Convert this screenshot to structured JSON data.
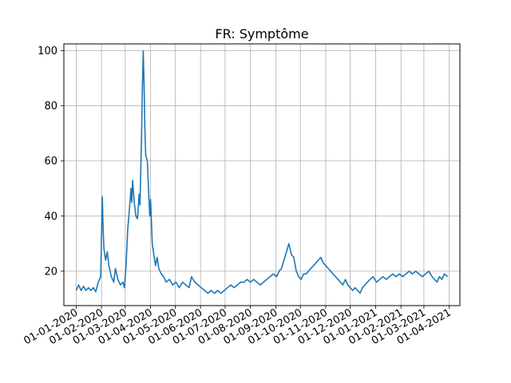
{
  "chart_data": {
    "type": "line",
    "title": "FR: Symptôme",
    "xlabel": "",
    "ylabel": "",
    "grid": true,
    "legend": "none",
    "color": "#1f77b4",
    "xlim": [
      "2019-12-17",
      "2021-04-14"
    ],
    "ylim": [
      7.5,
      102.5
    ],
    "x_ticks": [
      "01-01-2020",
      "01-02-2020",
      "01-03-2020",
      "01-04-2020",
      "01-05-2020",
      "01-06-2020",
      "01-07-2020",
      "01-08-2020",
      "01-09-2020",
      "01-10-2020",
      "01-11-2020",
      "01-12-2020",
      "01-01-2021",
      "01-02-2021",
      "01-03-2021",
      "01-04-2021"
    ],
    "y_ticks": [
      20,
      40,
      60,
      80,
      100
    ],
    "series": [
      {
        "name": "",
        "points": [
          [
            "2020-01-01",
            13
          ],
          [
            "2020-01-04",
            15
          ],
          [
            "2020-01-07",
            13
          ],
          [
            "2020-01-10",
            14.5
          ],
          [
            "2020-01-13",
            13
          ],
          [
            "2020-01-16",
            14
          ],
          [
            "2020-01-19",
            13
          ],
          [
            "2020-01-22",
            14
          ],
          [
            "2020-01-25",
            12.5
          ],
          [
            "2020-01-28",
            16
          ],
          [
            "2020-01-31",
            18
          ],
          [
            "2020-02-02",
            47
          ],
          [
            "2020-02-03",
            35
          ],
          [
            "2020-02-04",
            28
          ],
          [
            "2020-02-06",
            24
          ],
          [
            "2020-02-08",
            27
          ],
          [
            "2020-02-10",
            22
          ],
          [
            "2020-02-13",
            18
          ],
          [
            "2020-02-16",
            16
          ],
          [
            "2020-02-18",
            21
          ],
          [
            "2020-02-21",
            17
          ],
          [
            "2020-02-24",
            15
          ],
          [
            "2020-02-27",
            16
          ],
          [
            "2020-02-29",
            14
          ],
          [
            "2020-03-02",
            22
          ],
          [
            "2020-03-04",
            35
          ],
          [
            "2020-03-06",
            42
          ],
          [
            "2020-03-08",
            50
          ],
          [
            "2020-03-09",
            45
          ],
          [
            "2020-03-10",
            53
          ],
          [
            "2020-03-12",
            45
          ],
          [
            "2020-03-14",
            40
          ],
          [
            "2020-03-16",
            39
          ],
          [
            "2020-03-18",
            48
          ],
          [
            "2020-03-19",
            44
          ],
          [
            "2020-03-21",
            70
          ],
          [
            "2020-03-22",
            87
          ],
          [
            "2020-03-23",
            100
          ],
          [
            "2020-03-24",
            88
          ],
          [
            "2020-03-25",
            72
          ],
          [
            "2020-03-26",
            62
          ],
          [
            "2020-03-28",
            60
          ],
          [
            "2020-03-30",
            46
          ],
          [
            "2020-03-31",
            40
          ],
          [
            "2020-04-01",
            46
          ],
          [
            "2020-04-03",
            30
          ],
          [
            "2020-04-05",
            26
          ],
          [
            "2020-04-07",
            22
          ],
          [
            "2020-04-09",
            25
          ],
          [
            "2020-04-11",
            21
          ],
          [
            "2020-04-14",
            19
          ],
          [
            "2020-04-17",
            18
          ],
          [
            "2020-04-20",
            16
          ],
          [
            "2020-04-24",
            17
          ],
          [
            "2020-04-28",
            15
          ],
          [
            "2020-05-02",
            16
          ],
          [
            "2020-05-06",
            14
          ],
          [
            "2020-05-10",
            16
          ],
          [
            "2020-05-14",
            15
          ],
          [
            "2020-05-18",
            14
          ],
          [
            "2020-05-21",
            18
          ],
          [
            "2020-05-25",
            16
          ],
          [
            "2020-05-29",
            15
          ],
          [
            "2020-06-02",
            14
          ],
          [
            "2020-06-06",
            13
          ],
          [
            "2020-06-10",
            12
          ],
          [
            "2020-06-14",
            13
          ],
          [
            "2020-06-18",
            12
          ],
          [
            "2020-06-22",
            13
          ],
          [
            "2020-06-26",
            12
          ],
          [
            "2020-06-30",
            13
          ],
          [
            "2020-07-04",
            14
          ],
          [
            "2020-07-08",
            15
          ],
          [
            "2020-07-12",
            14
          ],
          [
            "2020-07-16",
            15
          ],
          [
            "2020-07-20",
            16
          ],
          [
            "2020-07-24",
            16
          ],
          [
            "2020-07-28",
            17
          ],
          [
            "2020-08-01",
            16
          ],
          [
            "2020-08-05",
            17
          ],
          [
            "2020-08-09",
            16
          ],
          [
            "2020-08-13",
            15
          ],
          [
            "2020-08-17",
            16
          ],
          [
            "2020-08-21",
            17
          ],
          [
            "2020-08-25",
            18
          ],
          [
            "2020-08-29",
            19
          ],
          [
            "2020-09-02",
            18
          ],
          [
            "2020-09-05",
            20
          ],
          [
            "2020-09-08",
            21
          ],
          [
            "2020-09-11",
            24
          ],
          [
            "2020-09-14",
            27
          ],
          [
            "2020-09-17",
            30
          ],
          [
            "2020-09-20",
            26
          ],
          [
            "2020-09-23",
            25
          ],
          [
            "2020-09-26",
            20
          ],
          [
            "2020-09-29",
            18
          ],
          [
            "2020-10-02",
            17
          ],
          [
            "2020-10-05",
            19
          ],
          [
            "2020-10-08",
            19
          ],
          [
            "2020-10-11",
            20
          ],
          [
            "2020-10-14",
            21
          ],
          [
            "2020-10-17",
            22
          ],
          [
            "2020-10-20",
            23
          ],
          [
            "2020-10-23",
            24
          ],
          [
            "2020-10-26",
            25
          ],
          [
            "2020-10-29",
            23
          ],
          [
            "2020-11-01",
            22
          ],
          [
            "2020-11-04",
            21
          ],
          [
            "2020-11-07",
            20
          ],
          [
            "2020-11-10",
            19
          ],
          [
            "2020-11-13",
            18
          ],
          [
            "2020-11-16",
            17
          ],
          [
            "2020-11-19",
            16
          ],
          [
            "2020-11-22",
            15
          ],
          [
            "2020-11-25",
            17
          ],
          [
            "2020-11-28",
            15
          ],
          [
            "2020-12-01",
            14
          ],
          [
            "2020-12-04",
            13
          ],
          [
            "2020-12-07",
            14
          ],
          [
            "2020-12-10",
            13
          ],
          [
            "2020-12-13",
            12
          ],
          [
            "2020-12-16",
            14
          ],
          [
            "2020-12-19",
            15
          ],
          [
            "2020-12-22",
            16
          ],
          [
            "2020-12-25",
            17
          ],
          [
            "2020-12-29",
            18
          ],
          [
            "2021-01-02",
            16
          ],
          [
            "2021-01-06",
            17
          ],
          [
            "2021-01-10",
            18
          ],
          [
            "2021-01-14",
            17
          ],
          [
            "2021-01-18",
            18
          ],
          [
            "2021-01-22",
            19
          ],
          [
            "2021-01-26",
            18
          ],
          [
            "2021-01-30",
            19
          ],
          [
            "2021-02-03",
            18
          ],
          [
            "2021-02-07",
            19
          ],
          [
            "2021-02-11",
            20
          ],
          [
            "2021-02-15",
            19
          ],
          [
            "2021-02-19",
            20
          ],
          [
            "2021-02-23",
            19
          ],
          [
            "2021-02-27",
            18
          ],
          [
            "2021-03-03",
            19
          ],
          [
            "2021-03-07",
            20
          ],
          [
            "2021-03-11",
            18
          ],
          [
            "2021-03-14",
            17
          ],
          [
            "2021-03-17",
            16
          ],
          [
            "2021-03-20",
            18
          ],
          [
            "2021-03-23",
            17
          ],
          [
            "2021-03-26",
            19
          ],
          [
            "2021-03-30",
            18
          ]
        ]
      }
    ]
  }
}
